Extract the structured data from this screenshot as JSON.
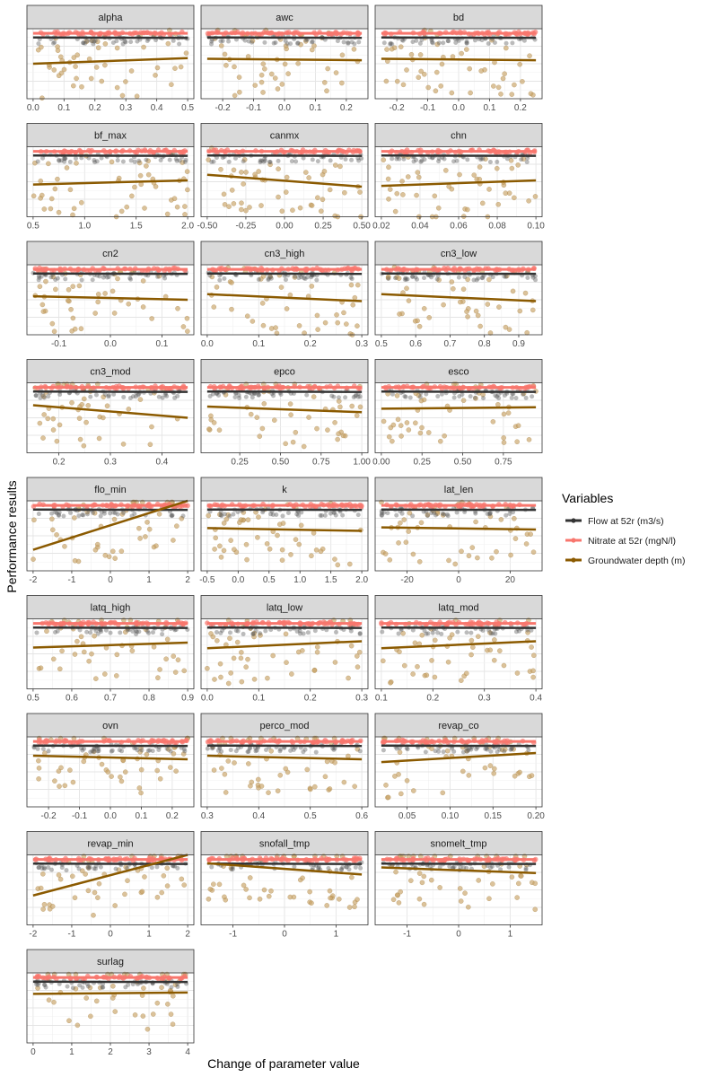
{
  "chart_data": {
    "type": "scatter",
    "xlabel": "Change of parameter value",
    "ylabel": "Performance results",
    "legend": {
      "title": "Variables",
      "position": "right"
    },
    "series": [
      {
        "name": "Flow at 52r (m3/s)",
        "color": "#333333"
      },
      {
        "name": "Nitrate at 52r (mgN/l)",
        "color": "#f8766d"
      },
      {
        "name": "Groundwater depth (m)",
        "color": "#8b5a00",
        "point_color": "#c8a264"
      }
    ],
    "grid": true,
    "panels": [
      {
        "name": "alpha",
        "xlim": [
          0,
          0.5
        ],
        "ticks": [
          0,
          0.1,
          0.2,
          0.3,
          0.4,
          0.5
        ],
        "tick_labels": [
          "0.0",
          "0.1",
          "0.2",
          "0.3",
          "0.4",
          "0.5"
        ],
        "gw_trend": [
          0.5,
          0.58
        ],
        "seed": 3
      },
      {
        "name": "awc",
        "xlim": [
          -0.25,
          0.25
        ],
        "ticks": [
          -0.2,
          -0.1,
          0,
          0.1,
          0.2
        ],
        "tick_labels": [
          "-0.2",
          "-0.1",
          "0.0",
          "0.1",
          "0.2"
        ],
        "gw_trend": [
          0.57,
          0.55
        ],
        "seed": 7
      },
      {
        "name": "bd",
        "xlim": [
          -0.25,
          0.25
        ],
        "ticks": [
          -0.2,
          -0.1,
          0,
          0.1,
          0.2
        ],
        "tick_labels": [
          "-0.2",
          "-0.1",
          "0.0",
          "0.1",
          "0.2"
        ],
        "gw_trend": [
          0.57,
          0.55
        ],
        "seed": 11
      },
      {
        "name": "bf_max",
        "xlim": [
          0.5,
          2.0
        ],
        "ticks": [
          0.5,
          1.0,
          1.5,
          2.0
        ],
        "tick_labels": [
          "0.5",
          "1.0",
          "1.5",
          "2.0"
        ],
        "gw_trend": [
          0.46,
          0.52
        ],
        "seed": 13
      },
      {
        "name": "canmx",
        "xlim": [
          -0.5,
          0.5
        ],
        "ticks": [
          -0.5,
          -0.25,
          0,
          0.25,
          0.5
        ],
        "tick_labels": [
          "-0.50",
          "-0.25",
          "0.00",
          "0.25",
          "0.50"
        ],
        "gw_trend": [
          0.6,
          0.43
        ],
        "seed": 17
      },
      {
        "name": "chn",
        "xlim": [
          0.02,
          0.1
        ],
        "ticks": [
          0.02,
          0.04,
          0.06,
          0.08,
          0.1
        ],
        "tick_labels": [
          "0.02",
          "0.04",
          "0.06",
          "0.08",
          "0.10"
        ],
        "gw_trend": [
          0.44,
          0.52
        ],
        "seed": 19
      },
      {
        "name": "cn2",
        "xlim": [
          -0.15,
          0.15
        ],
        "ticks": [
          -0.1,
          0,
          0.1
        ],
        "tick_labels": [
          "-0.1",
          "0.0",
          "0.1"
        ],
        "gw_trend": [
          0.55,
          0.5
        ],
        "seed": 23
      },
      {
        "name": "cn3_high",
        "xlim": [
          0,
          0.3
        ],
        "ticks": [
          0,
          0.1,
          0.2,
          0.3
        ],
        "tick_labels": [
          "0.0",
          "0.1",
          "0.2",
          "0.3"
        ],
        "gw_trend": [
          0.58,
          0.48
        ],
        "seed": 29
      },
      {
        "name": "cn3_low",
        "xlim": [
          0.5,
          0.95
        ],
        "ticks": [
          0.5,
          0.6,
          0.7,
          0.8,
          0.9
        ],
        "tick_labels": [
          "0.5",
          "0.6",
          "0.7",
          "0.8",
          "0.9"
        ],
        "gw_trend": [
          0.58,
          0.48
        ],
        "seed": 31
      },
      {
        "name": "cn3_mod",
        "xlim": [
          0.15,
          0.45
        ],
        "ticks": [
          0.2,
          0.3,
          0.4
        ],
        "tick_labels": [
          "0.2",
          "0.3",
          "0.4"
        ],
        "gw_trend": [
          0.68,
          0.5
        ],
        "seed": 37
      },
      {
        "name": "epco",
        "xlim": [
          0.05,
          1.0
        ],
        "ticks": [
          0.25,
          0.5,
          0.75,
          1.0
        ],
        "tick_labels": [
          "0.25",
          "0.50",
          "0.75",
          "1.00"
        ],
        "gw_trend": [
          0.66,
          0.58
        ],
        "seed": 41
      },
      {
        "name": "esco",
        "xlim": [
          0,
          0.95
        ],
        "ticks": [
          0,
          0.25,
          0.5,
          0.75
        ],
        "tick_labels": [
          "0.00",
          "0.25",
          "0.50",
          "0.75"
        ],
        "gw_trend": [
          0.63,
          0.65
        ],
        "seed": 43
      },
      {
        "name": "flo_min",
        "xlim": [
          -2,
          2
        ],
        "ticks": [
          -2,
          -1,
          0,
          1,
          2
        ],
        "tick_labels": [
          "-2",
          "-1",
          "0",
          "1",
          "2"
        ],
        "gw_trend": [
          0.3,
          1.0
        ],
        "seed": 47
      },
      {
        "name": "k",
        "xlim": [
          -0.5,
          2.0
        ],
        "ticks": [
          -0.5,
          0,
          0.5,
          1.0,
          1.5,
          2.0
        ],
        "tick_labels": [
          "-0.5",
          "0.0",
          "0.5",
          "1.0",
          "1.5",
          "2.0"
        ],
        "gw_trend": [
          0.61,
          0.57
        ],
        "seed": 53
      },
      {
        "name": "lat_len",
        "xlim": [
          -30,
          30
        ],
        "ticks": [
          -20,
          0,
          20
        ],
        "tick_labels": [
          "-20",
          "0",
          "20"
        ],
        "gw_trend": [
          0.62,
          0.59
        ],
        "seed": 59
      },
      {
        "name": "latq_high",
        "xlim": [
          0.5,
          0.9
        ],
        "ticks": [
          0.5,
          0.6,
          0.7,
          0.8,
          0.9
        ],
        "tick_labels": [
          "0.5",
          "0.6",
          "0.7",
          "0.8",
          "0.9"
        ],
        "gw_trend": [
          0.59,
          0.66
        ],
        "seed": 61
      },
      {
        "name": "latq_low",
        "xlim": [
          0,
          0.3
        ],
        "ticks": [
          0,
          0.1,
          0.2,
          0.3
        ],
        "tick_labels": [
          "0.0",
          "0.1",
          "0.2",
          "0.3"
        ],
        "gw_trend": [
          0.58,
          0.68
        ],
        "seed": 67
      },
      {
        "name": "latq_mod",
        "xlim": [
          0.1,
          0.4
        ],
        "ticks": [
          0.1,
          0.2,
          0.3,
          0.4
        ],
        "tick_labels": [
          "0.1",
          "0.2",
          "0.3",
          "0.4"
        ],
        "gw_trend": [
          0.58,
          0.68
        ],
        "seed": 71
      },
      {
        "name": "ovn",
        "xlim": [
          -0.25,
          0.25
        ],
        "ticks": [
          -0.2,
          -0.1,
          0,
          0.1,
          0.2
        ],
        "tick_labels": [
          "-0.2",
          "-0.1",
          "0.0",
          "0.1",
          "0.2"
        ],
        "gw_trend": [
          0.73,
          0.68
        ],
        "seed": 73
      },
      {
        "name": "perco_mod",
        "xlim": [
          0.3,
          0.6
        ],
        "ticks": [
          0.3,
          0.4,
          0.5,
          0.6
        ],
        "tick_labels": [
          "0.3",
          "0.4",
          "0.5",
          "0.6"
        ],
        "gw_trend": [
          0.73,
          0.68
        ],
        "seed": 79
      },
      {
        "name": "revap_co",
        "xlim": [
          0.02,
          0.2
        ],
        "ticks": [
          0.05,
          0.1,
          0.15,
          0.2
        ],
        "tick_labels": [
          "0.05",
          "0.10",
          "0.15",
          "0.20"
        ],
        "gw_trend": [
          0.64,
          0.77
        ],
        "seed": 83
      },
      {
        "name": "revap_min",
        "xlim": [
          -2,
          2
        ],
        "ticks": [
          -2,
          -1,
          0,
          1,
          2
        ],
        "tick_labels": [
          "-2",
          "-1",
          "0",
          "1",
          "2"
        ],
        "gw_trend": [
          0.42,
          1.0
        ],
        "seed": 89
      },
      {
        "name": "snofall_tmp",
        "xlim": [
          -1.5,
          1.5
        ],
        "ticks": [
          -1,
          0,
          1
        ],
        "tick_labels": [
          "-1",
          "0",
          "1"
        ],
        "gw_trend": [
          0.88,
          0.72
        ],
        "seed": 97
      },
      {
        "name": "snomelt_tmp",
        "xlim": [
          -1.5,
          1.5
        ],
        "ticks": [
          -1,
          0,
          1
        ],
        "tick_labels": [
          "-1",
          "0",
          "1"
        ],
        "gw_trend": [
          0.82,
          0.74
        ],
        "seed": 101
      },
      {
        "name": "surlag",
        "xlim": [
          0,
          4
        ],
        "ticks": [
          0,
          1,
          2,
          3,
          4
        ],
        "tick_labels": [
          "0",
          "1",
          "2",
          "3",
          "4"
        ],
        "gw_trend": [
          0.7,
          0.72
        ],
        "seed": 103
      }
    ]
  }
}
